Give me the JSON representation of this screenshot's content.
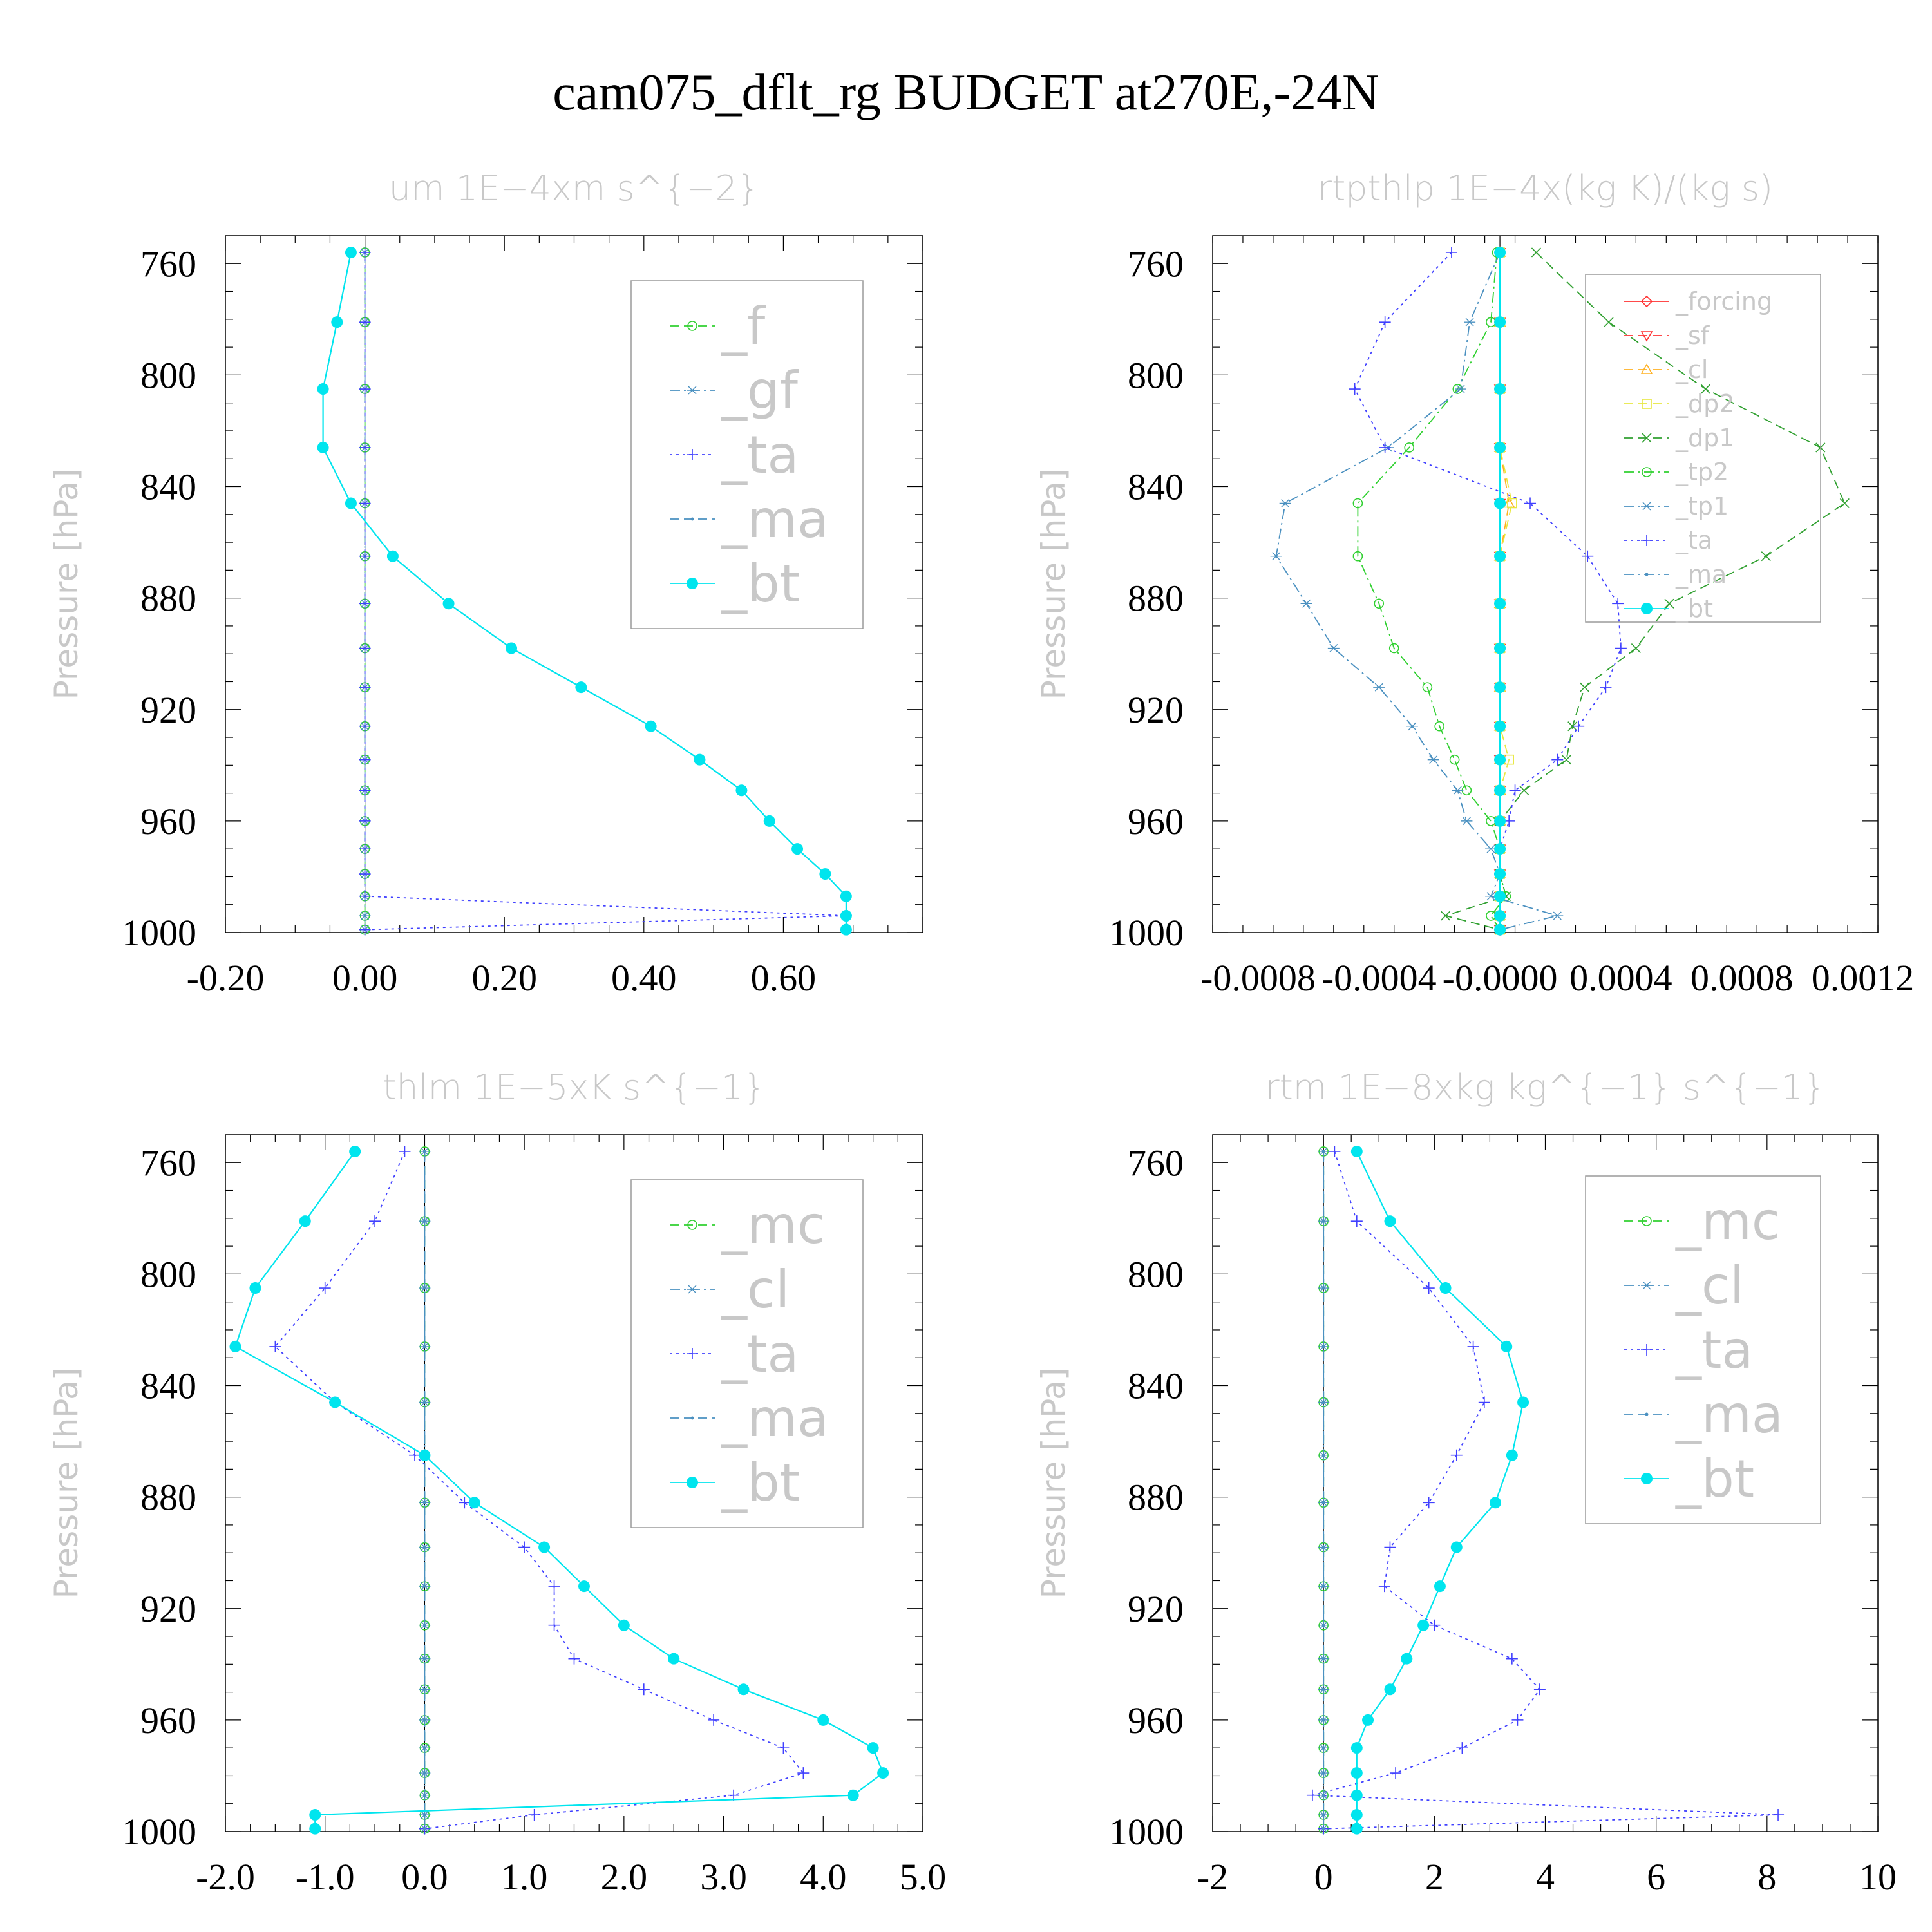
{
  "title": "cam075_dflt_rg  BUDGET at270E,-24N",
  "ylabel": "Pressure [hPa]",
  "colors": {
    "cyan": "#00e5ee",
    "blue": "#4040ff",
    "green": "#30d030",
    "steel": "#4a90c0",
    "red": "#ff3030",
    "orange": "#ffb020",
    "yellow": "#e8e840",
    "gray": "#c8c8c8"
  },
  "chart_data": [
    {
      "type": "line",
      "title": "um   1E−4xm s^{−2}",
      "ylabel": "Pressure [hPa]",
      "y_inverted": true,
      "ylim": [
        1000,
        750
      ],
      "xlim": [
        -0.2,
        0.8
      ],
      "xticks": [
        -0.2,
        0.0,
        0.2,
        0.4,
        0.6
      ],
      "xtick_labels": [
        "-0.20",
        "0.00",
        "0.20",
        "0.40",
        "0.60"
      ],
      "yticks": [
        760,
        800,
        840,
        880,
        920,
        960,
        1000
      ],
      "legend": "top-right",
      "pressure": [
        756,
        781,
        805,
        826,
        846,
        865,
        882,
        898,
        912,
        926,
        938,
        949,
        960,
        970,
        979,
        987,
        994,
        999
      ],
      "series": [
        {
          "name": "_f",
          "color": "#30d030",
          "style": "dash",
          "marker": "circle-open",
          "values": [
            0,
            0,
            0,
            0,
            0,
            0,
            0,
            0,
            0,
            0,
            0,
            0,
            0,
            0,
            0,
            0,
            0,
            0
          ]
        },
        {
          "name": "_gf",
          "color": "#4a90c0",
          "style": "dashdot",
          "marker": "asterisk",
          "values": [
            0,
            0,
            0,
            0,
            0,
            0,
            0,
            0,
            0,
            0,
            0,
            0,
            0,
            0,
            0,
            0,
            0,
            0
          ]
        },
        {
          "name": "_ta",
          "color": "#4040ff",
          "style": "dot",
          "marker": "plus",
          "values": [
            0,
            0,
            0,
            0,
            0,
            0,
            0,
            0,
            0,
            0,
            0,
            0,
            0,
            0,
            0,
            0,
            0.69,
            0
          ]
        },
        {
          "name": "_ma",
          "color": "#4a90c0",
          "style": "dash",
          "marker": "dot",
          "values": [
            -0.02,
            -0.04,
            -0.06,
            -0.06,
            -0.02,
            0.04,
            0.12,
            0.21,
            0.31,
            0.41,
            0.48,
            0.54,
            0.58,
            0.62,
            0.66,
            0.69,
            0.69,
            0.69
          ]
        },
        {
          "name": "_bt",
          "color": "#00e5ee",
          "style": "solid",
          "marker": "circle-filled",
          "values": [
            -0.02,
            -0.04,
            -0.06,
            -0.06,
            -0.02,
            0.04,
            0.12,
            0.21,
            0.31,
            0.41,
            0.48,
            0.54,
            0.58,
            0.62,
            0.66,
            0.69,
            0.69,
            0.69
          ]
        }
      ]
    },
    {
      "type": "line",
      "title": "rtpthlp   1E−4x(kg K)/(kg s)",
      "ylabel": "Pressure [hPa]",
      "y_inverted": true,
      "ylim": [
        1000,
        750
      ],
      "xlim": [
        -0.00095,
        0.00125
      ],
      "xticks": [
        -0.0008,
        -0.0004,
        0.0,
        0.0004,
        0.0008,
        0.0012
      ],
      "xtick_labels": [
        "-0.0008",
        "-0.0004",
        "-0.0000",
        "0.0004",
        "0.0008",
        "0.0012"
      ],
      "yticks": [
        760,
        800,
        840,
        880,
        920,
        960,
        1000
      ],
      "legend": "top-right",
      "pressure": [
        756,
        781,
        805,
        826,
        846,
        865,
        882,
        898,
        912,
        926,
        938,
        949,
        960,
        970,
        979,
        987,
        994,
        999
      ],
      "series": [
        {
          "name": "_forcing",
          "color": "#ff3030",
          "style": "solid",
          "marker": "diamond-open",
          "values": [
            0,
            0,
            0,
            0,
            0,
            0,
            0,
            0,
            0,
            0,
            0,
            0,
            0,
            0,
            0,
            0,
            0,
            0
          ]
        },
        {
          "name": "_sf",
          "color": "#ff3030",
          "style": "dash",
          "marker": "tri-down",
          "values": [
            0,
            0,
            0,
            0,
            0,
            0,
            0,
            0,
            0,
            0,
            0,
            0,
            0,
            0,
            0,
            0,
            0,
            0
          ]
        },
        {
          "name": "_cl",
          "color": "#ffb020",
          "style": "dash",
          "marker": "tri-up",
          "values": [
            0,
            0,
            0,
            0,
            3e-05,
            0,
            0,
            0,
            0,
            0,
            0,
            0,
            0,
            0,
            0,
            0,
            0,
            0
          ]
        },
        {
          "name": "_dp2",
          "color": "#e8e840",
          "style": "dash",
          "marker": "square-open",
          "values": [
            0,
            0,
            0,
            0,
            4e-05,
            0,
            0,
            0,
            0,
            0,
            3e-05,
            0,
            0,
            0,
            0,
            0,
            0,
            0
          ]
        },
        {
          "name": "_dp1",
          "color": "#30a030",
          "style": "dash",
          "marker": "x",
          "values": [
            0.00012,
            0.00036,
            0.00068,
            0.00106,
            0.00114,
            0.00088,
            0.00056,
            0.00045,
            0.00028,
            0.00024,
            0.00022,
            8e-05,
            0,
            0,
            0,
            2e-05,
            -0.00018,
            0
          ]
        },
        {
          "name": "_tp2",
          "color": "#30d030",
          "style": "dashdot",
          "marker": "circle-open",
          "values": [
            -1e-05,
            -3e-05,
            -0.00014,
            -0.0003,
            -0.00047,
            -0.00047,
            -0.0004,
            -0.00035,
            -0.00024,
            -0.0002,
            -0.00015,
            -0.00011,
            -3e-05,
            0,
            0,
            2e-05,
            -3e-05,
            0
          ]
        },
        {
          "name": "_tp1",
          "color": "#4a90c0",
          "style": "dashdot",
          "marker": "asterisk",
          "values": [
            0,
            -0.0001,
            -0.00013,
            -0.00037,
            -0.00071,
            -0.00074,
            -0.00064,
            -0.00055,
            -0.0004,
            -0.00029,
            -0.00022,
            -0.00014,
            -0.00011,
            -3e-05,
            0,
            -3e-05,
            0.00019,
            0
          ]
        },
        {
          "name": "_ta",
          "color": "#4040ff",
          "style": "dot",
          "marker": "plus",
          "values": [
            -0.00016,
            -0.00038,
            -0.00048,
            -0.00038,
            0.0001,
            0.00029,
            0.00039,
            0.0004,
            0.00035,
            0.00026,
            0.00019,
            5e-05,
            3e-05,
            0,
            0,
            0,
            0,
            0
          ]
        },
        {
          "name": "_ma",
          "color": "#4a90c0",
          "style": "dashdot",
          "marker": "dot",
          "values": [
            0,
            0,
            0,
            0,
            0,
            0,
            0,
            0,
            0,
            0,
            0,
            0,
            0,
            0,
            0,
            0,
            0,
            0
          ]
        },
        {
          "name": "_bt",
          "color": "#00e5ee",
          "style": "solid",
          "marker": "circle-filled",
          "values": [
            0,
            0,
            0,
            0,
            0,
            0,
            0,
            0,
            0,
            0,
            0,
            0,
            0,
            0,
            0,
            0,
            0,
            0
          ]
        }
      ]
    },
    {
      "type": "line",
      "title": "thlm   1E−5xK s^{−1}",
      "ylabel": "Pressure [hPa]",
      "y_inverted": true,
      "ylim": [
        1000,
        750
      ],
      "xlim": [
        -2.0,
        5.0
      ],
      "xticks": [
        -2.0,
        -1.0,
        0.0,
        1.0,
        2.0,
        3.0,
        4.0,
        5.0
      ],
      "xtick_labels": [
        "-2.0",
        "-1.0",
        "0.0",
        "1.0",
        "2.0",
        "3.0",
        "4.0",
        "5.0"
      ],
      "yticks": [
        760,
        800,
        840,
        880,
        920,
        960,
        1000
      ],
      "legend": "top-right",
      "pressure": [
        756,
        781,
        805,
        826,
        846,
        865,
        882,
        898,
        912,
        926,
        938,
        949,
        960,
        970,
        979,
        987,
        994,
        999
      ],
      "series": [
        {
          "name": "_mc",
          "color": "#30d030",
          "style": "dash",
          "marker": "circle-open",
          "values": [
            0,
            0,
            0,
            0,
            0,
            0,
            0,
            0,
            0,
            0,
            0,
            0,
            0,
            0,
            0,
            0,
            0,
            0
          ]
        },
        {
          "name": "_cl",
          "color": "#4a90c0",
          "style": "dashdot",
          "marker": "asterisk",
          "values": [
            0,
            0,
            0,
            0,
            0,
            0,
            0,
            0,
            0,
            0,
            0,
            0,
            0,
            0,
            0,
            0,
            0,
            0
          ]
        },
        {
          "name": "_ta",
          "color": "#4040ff",
          "style": "dot",
          "marker": "plus",
          "values": [
            -0.2,
            -0.5,
            -1.0,
            -1.5,
            -0.9,
            -0.1,
            0.4,
            1.0,
            1.3,
            1.3,
            1.5,
            2.2,
            2.9,
            3.6,
            3.8,
            3.1,
            1.1,
            0
          ]
        },
        {
          "name": "_ma",
          "color": "#4a90c0",
          "style": "dash",
          "marker": "dot",
          "values": [
            0,
            0,
            0,
            0,
            0,
            0,
            0,
            0,
            0,
            0,
            0,
            0,
            0,
            0,
            0,
            0,
            0,
            0
          ]
        },
        {
          "name": "_bt",
          "color": "#00e5ee",
          "style": "solid",
          "marker": "circle-filled",
          "values": [
            -0.7,
            -1.2,
            -1.7,
            -1.9,
            -0.9,
            0.0,
            0.5,
            1.2,
            1.6,
            2.0,
            2.5,
            3.2,
            4.0,
            4.5,
            4.6,
            4.3,
            -1.1,
            -1.1
          ]
        }
      ]
    },
    {
      "type": "line",
      "title": "rtm   1E−8xkg kg^{−1} s^{−1}",
      "ylabel": "Pressure [hPa]",
      "y_inverted": true,
      "ylim": [
        1000,
        750
      ],
      "xlim": [
        -2,
        10
      ],
      "xticks": [
        -2,
        0,
        2,
        4,
        6,
        8,
        10
      ],
      "xtick_labels": [
        "-2",
        "0",
        "2",
        "4",
        "6",
        "8",
        "10"
      ],
      "yticks": [
        760,
        800,
        840,
        880,
        920,
        960,
        1000
      ],
      "legend": "top-right",
      "pressure": [
        756,
        781,
        805,
        826,
        846,
        865,
        882,
        898,
        912,
        926,
        938,
        949,
        960,
        970,
        979,
        987,
        994,
        999
      ],
      "series": [
        {
          "name": "_mc",
          "color": "#30d030",
          "style": "dash",
          "marker": "circle-open",
          "values": [
            0,
            0,
            0,
            0,
            0,
            0,
            0,
            0,
            0,
            0,
            0,
            0,
            0,
            0,
            0,
            0,
            0,
            0
          ]
        },
        {
          "name": "_cl",
          "color": "#4a90c0",
          "style": "dashdot",
          "marker": "asterisk",
          "values": [
            0,
            0,
            0,
            0,
            0,
            0,
            0,
            0,
            0,
            0,
            0,
            0,
            0,
            0,
            0,
            0,
            0,
            0
          ]
        },
        {
          "name": "_ta",
          "color": "#4040ff",
          "style": "dot",
          "marker": "plus",
          "values": [
            0.2,
            0.6,
            1.9,
            2.7,
            2.9,
            2.4,
            1.9,
            1.2,
            1.1,
            2.0,
            3.4,
            3.9,
            3.5,
            2.5,
            1.3,
            -0.2,
            8.2,
            0
          ]
        },
        {
          "name": "_ma",
          "color": "#4a90c0",
          "style": "dash",
          "marker": "dot",
          "values": [
            0,
            0,
            0,
            0,
            0,
            0,
            0,
            0,
            0,
            0,
            0,
            0,
            0,
            0,
            0,
            0,
            0,
            0
          ]
        },
        {
          "name": "_bt",
          "color": "#00e5ee",
          "style": "solid",
          "marker": "circle-filled",
          "values": [
            0.6,
            1.2,
            2.2,
            3.3,
            3.6,
            3.4,
            3.1,
            2.4,
            2.1,
            1.8,
            1.5,
            1.2,
            0.8,
            0.6,
            0.6,
            0.6,
            0.6,
            0.6
          ]
        }
      ]
    }
  ]
}
